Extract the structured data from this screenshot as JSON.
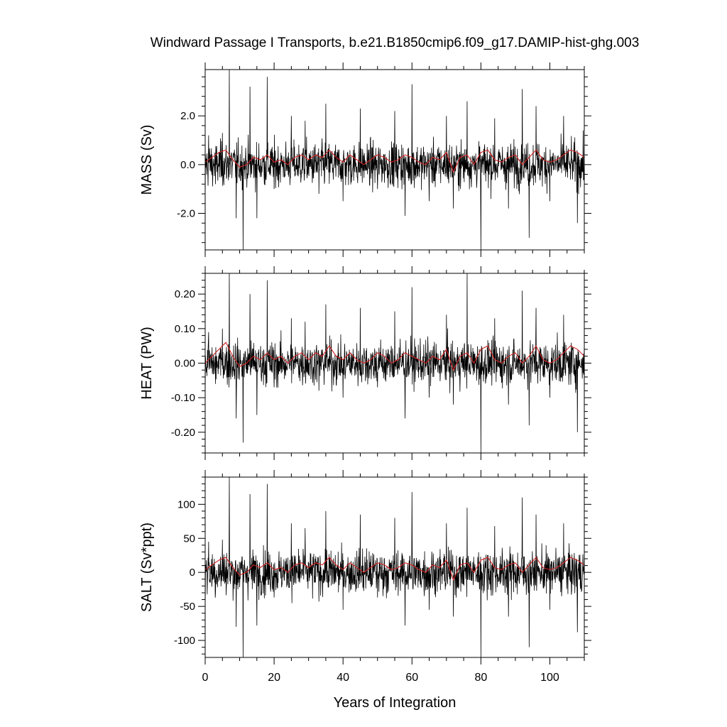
{
  "chart_data": {
    "title": "Windward Passage I Transports, b.e21.B1850cmip6.f09_g17.DAMIP-hist-ghg.003",
    "xlabel": "Years of Integration",
    "xlim": [
      0,
      110
    ],
    "xticks": [
      0,
      20,
      40,
      60,
      80,
      100
    ],
    "xtick_labels": [
      "0",
      "20",
      "40",
      "60",
      "80",
      "100"
    ],
    "panels": [
      {
        "type": "line",
        "ylabel": "MASS (Sv)",
        "ylim": [
          -3.5,
          3.9
        ],
        "yticks": [
          2.0,
          0.0,
          -2.0
        ],
        "ytick_labels": [
          "2.0",
          "0.0",
          "-2.0"
        ],
        "series": [
          {
            "role": "monthly",
            "color": "#000000",
            "x": [
              0,
              1,
              3,
              5,
              7,
              9,
              11,
              13,
              15,
              18,
              20,
              25,
              29,
              33,
              35,
              40,
              45,
              50,
              55,
              58,
              60,
              65,
              70,
              72,
              76,
              80,
              84,
              88,
              92,
              94,
              96,
              100,
              104,
              108,
              110
            ],
            "y": [
              -1.5,
              1.2,
              -0.8,
              1.3,
              3.9,
              -2.2,
              -3.5,
              3.2,
              -2.2,
              3.6,
              -1.0,
              2.0,
              1.8,
              -1.2,
              2.5,
              -1.5,
              2.3,
              -1.0,
              2.2,
              -2.1,
              3.3,
              -1.5,
              2.0,
              -1.8,
              2.6,
              -3.5,
              1.9,
              -1.8,
              3.1,
              -3.0,
              2.4,
              -1.5,
              2.0,
              -2.4,
              1.0
            ]
          },
          {
            "role": "annual",
            "color": "#d22222",
            "x": [
              0,
              2,
              4,
              6,
              8,
              10,
              12,
              14,
              16,
              18,
              20,
              22,
              24,
              26,
              28,
              30,
              32,
              34,
              36,
              38,
              40,
              42,
              44,
              46,
              48,
              50,
              52,
              54,
              56,
              58,
              60,
              62,
              64,
              66,
              68,
              70,
              72,
              74,
              76,
              78,
              80,
              82,
              84,
              86,
              88,
              90,
              92,
              94,
              96,
              98,
              100,
              102,
              104,
              106,
              108,
              110
            ],
            "y": [
              0.1,
              0.3,
              0.5,
              0.6,
              0.2,
              -0.1,
              0.0,
              0.3,
              0.2,
              0.4,
              0.1,
              0.2,
              0.0,
              0.3,
              0.4,
              0.2,
              0.4,
              0.3,
              0.6,
              0.3,
              0.1,
              0.4,
              0.2,
              0.0,
              0.2,
              0.4,
              0.3,
              0.1,
              0.2,
              0.4,
              0.3,
              0.1,
              0.0,
              0.3,
              0.2,
              0.5,
              -0.3,
              0.3,
              0.4,
              0.0,
              0.5,
              0.6,
              0.2,
              0.1,
              0.3,
              0.4,
              0.0,
              0.3,
              0.6,
              0.2,
              0.1,
              0.2,
              0.4,
              0.6,
              0.5,
              0.3
            ]
          }
        ]
      },
      {
        "type": "line",
        "ylabel": "HEAT (PW)",
        "ylim": [
          -0.26,
          0.26
        ],
        "yticks": [
          0.2,
          0.1,
          0.0,
          -0.1,
          -0.2
        ],
        "ytick_labels": [
          "0.20",
          "0.10",
          "0.00",
          "-0.10",
          "-0.20"
        ],
        "series": [
          {
            "role": "monthly",
            "color": "#000000",
            "x": [
              0,
              1,
              3,
              5,
              7,
              9,
              11,
              13,
              15,
              18,
              20,
              25,
              29,
              33,
              35,
              40,
              45,
              50,
              55,
              58,
              60,
              65,
              70,
              72,
              76,
              80,
              84,
              88,
              92,
              94,
              96,
              100,
              104,
              108,
              110
            ],
            "y": [
              -0.1,
              0.09,
              -0.06,
              0.1,
              0.26,
              -0.16,
              -0.23,
              0.2,
              -0.15,
              0.24,
              -0.07,
              0.13,
              0.12,
              -0.08,
              0.17,
              -0.1,
              0.16,
              -0.07,
              0.15,
              -0.16,
              0.22,
              -0.1,
              0.14,
              -0.12,
              0.26,
              -0.26,
              0.13,
              -0.12,
              0.21,
              -0.18,
              0.16,
              -0.1,
              0.14,
              -0.2,
              0.06
            ]
          },
          {
            "role": "annual",
            "color": "#d22222",
            "x": [
              0,
              2,
              4,
              6,
              8,
              10,
              12,
              14,
              16,
              18,
              20,
              22,
              24,
              26,
              28,
              30,
              32,
              34,
              36,
              38,
              40,
              42,
              44,
              46,
              48,
              50,
              52,
              54,
              56,
              58,
              60,
              62,
              64,
              66,
              68,
              70,
              72,
              74,
              76,
              78,
              80,
              82,
              84,
              86,
              88,
              90,
              92,
              94,
              96,
              98,
              100,
              102,
              104,
              106,
              108,
              110
            ],
            "y": [
              0.0,
              0.02,
              0.04,
              0.06,
              0.02,
              -0.01,
              0.0,
              0.02,
              0.01,
              0.03,
              0.01,
              0.02,
              0.0,
              0.02,
              0.03,
              0.01,
              0.03,
              0.02,
              0.05,
              0.02,
              0.01,
              0.03,
              0.01,
              0.0,
              0.01,
              0.03,
              0.02,
              0.0,
              0.01,
              0.03,
              0.02,
              0.01,
              0.0,
              0.02,
              0.01,
              0.04,
              -0.02,
              0.02,
              0.03,
              0.0,
              0.04,
              0.05,
              0.01,
              0.0,
              0.02,
              0.03,
              0.0,
              0.02,
              0.05,
              0.01,
              0.0,
              0.01,
              0.03,
              0.05,
              0.04,
              0.02
            ]
          }
        ]
      },
      {
        "type": "line",
        "ylabel": "SALT (Sv*ppt)",
        "ylim": [
          -125,
          140
        ],
        "yticks": [
          100,
          50,
          0,
          -50,
          -100
        ],
        "ytick_labels": [
          "100",
          "50",
          "0",
          "-50",
          "-100"
        ],
        "series": [
          {
            "role": "monthly",
            "color": "#000000",
            "x": [
              0,
              1,
              3,
              5,
              7,
              9,
              11,
              13,
              15,
              18,
              20,
              25,
              29,
              33,
              35,
              40,
              45,
              50,
              55,
              58,
              60,
              65,
              70,
              72,
              76,
              80,
              84,
              88,
              92,
              94,
              96,
              100,
              104,
              108,
              110
            ],
            "y": [
              -55,
              45,
              -30,
              48,
              140,
              -80,
              -125,
              115,
              -78,
              130,
              -37,
              72,
              65,
              -43,
              90,
              -55,
              85,
              -37,
              80,
              -78,
              118,
              -55,
              72,
              -65,
              95,
              -125,
              68,
              -65,
              110,
              -110,
              85,
              -55,
              72,
              -88,
              36
            ]
          },
          {
            "role": "annual",
            "color": "#d22222",
            "x": [
              0,
              2,
              4,
              6,
              8,
              10,
              12,
              14,
              16,
              18,
              20,
              22,
              24,
              26,
              28,
              30,
              32,
              34,
              36,
              38,
              40,
              42,
              44,
              46,
              48,
              50,
              52,
              54,
              56,
              58,
              60,
              62,
              64,
              66,
              68,
              70,
              72,
              74,
              76,
              78,
              80,
              82,
              84,
              86,
              88,
              90,
              92,
              94,
              96,
              98,
              100,
              102,
              104,
              106,
              108,
              110
            ],
            "y": [
              4,
              11,
              18,
              22,
              7,
              -4,
              0,
              11,
              7,
              14,
              4,
              7,
              0,
              11,
              14,
              7,
              14,
              11,
              22,
              11,
              4,
              14,
              7,
              0,
              7,
              14,
              11,
              4,
              7,
              14,
              11,
              4,
              0,
              11,
              7,
              18,
              -11,
              11,
              14,
              0,
              18,
              22,
              7,
              4,
              11,
              14,
              0,
              11,
              22,
              7,
              4,
              7,
              14,
              22,
              18,
              11
            ]
          }
        ]
      }
    ]
  }
}
